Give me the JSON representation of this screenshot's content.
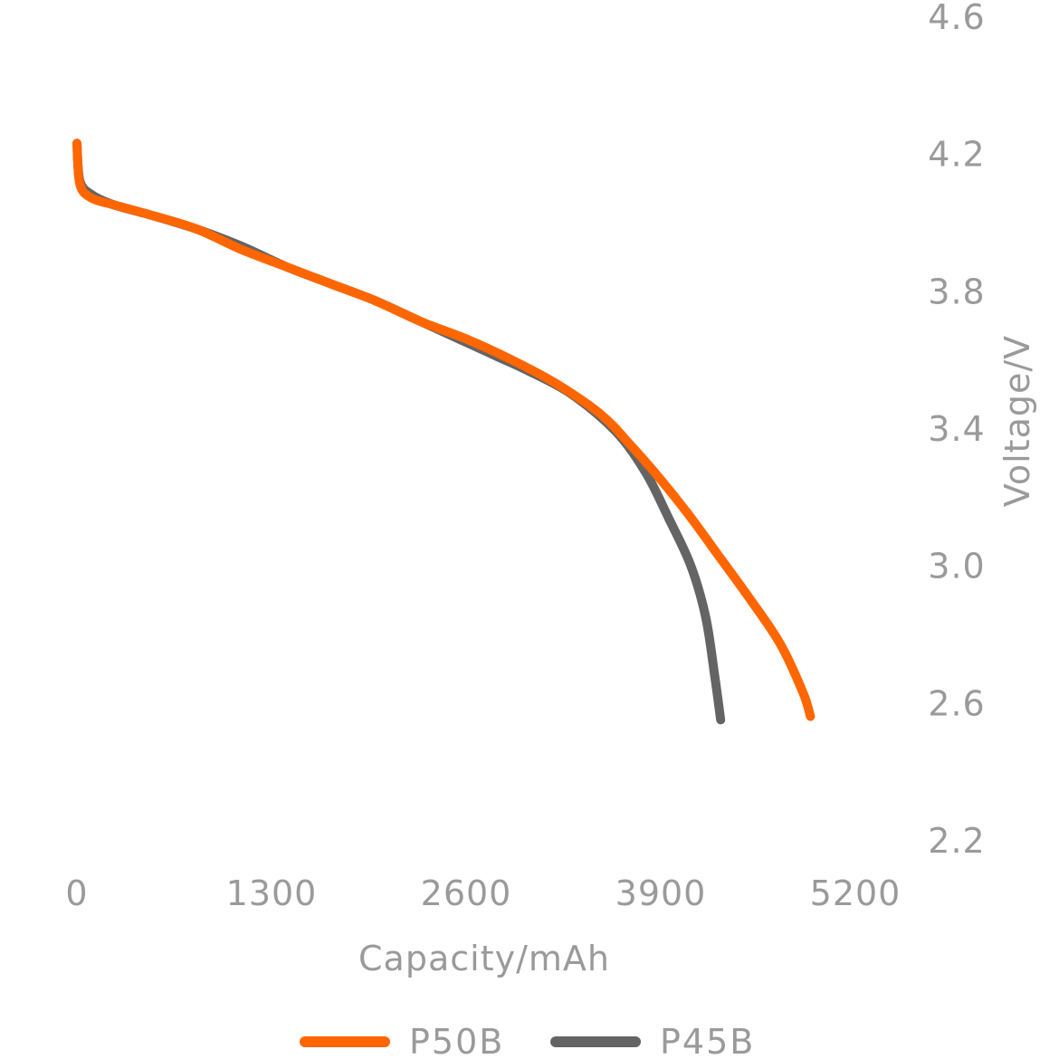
{
  "chart_data": {
    "type": "line",
    "title": "",
    "xlabel": "Capacity/mAh",
    "ylabel": "Voltage/V",
    "xlim": [
      0,
      5200
    ],
    "ylim": [
      2.2,
      4.6
    ],
    "x_ticks": [
      "0",
      "1300",
      "2600",
      "3900",
      "5200"
    ],
    "y_ticks": [
      "2.2",
      "2.6",
      "3.0",
      "3.4",
      "3.8",
      "4.2",
      "4.6"
    ],
    "y_axis_position": "right",
    "grid": false,
    "legend_position": "bottom-center",
    "series": [
      {
        "name": "P45B",
        "color": "#646464",
        "points": [
          [
            0,
            4.23
          ],
          [
            20,
            4.12
          ],
          [
            100,
            4.08
          ],
          [
            250,
            4.05
          ],
          [
            500,
            4.02
          ],
          [
            800,
            3.98
          ],
          [
            1100,
            3.93
          ],
          [
            1400,
            3.87
          ],
          [
            1700,
            3.82
          ],
          [
            2000,
            3.77
          ],
          [
            2300,
            3.71
          ],
          [
            2600,
            3.65
          ],
          [
            2800,
            3.61
          ],
          [
            3000,
            3.57
          ],
          [
            3300,
            3.5
          ],
          [
            3600,
            3.39
          ],
          [
            3800,
            3.27
          ],
          [
            3950,
            3.14
          ],
          [
            4100,
            3.0
          ],
          [
            4200,
            2.85
          ],
          [
            4260,
            2.68
          ],
          [
            4300,
            2.55
          ]
        ]
      },
      {
        "name": "P50B",
        "color": "#ff6600",
        "points": [
          [
            0,
            4.23
          ],
          [
            20,
            4.11
          ],
          [
            100,
            4.07
          ],
          [
            250,
            4.05
          ],
          [
            500,
            4.02
          ],
          [
            800,
            3.98
          ],
          [
            1100,
            3.92
          ],
          [
            1400,
            3.87
          ],
          [
            1700,
            3.82
          ],
          [
            2000,
            3.77
          ],
          [
            2300,
            3.71
          ],
          [
            2600,
            3.66
          ],
          [
            2900,
            3.6
          ],
          [
            3200,
            3.53
          ],
          [
            3500,
            3.44
          ],
          [
            3700,
            3.35
          ],
          [
            3900,
            3.25
          ],
          [
            4100,
            3.14
          ],
          [
            4300,
            3.02
          ],
          [
            4500,
            2.9
          ],
          [
            4700,
            2.77
          ],
          [
            4850,
            2.63
          ],
          [
            4900,
            2.56
          ]
        ]
      }
    ]
  }
}
